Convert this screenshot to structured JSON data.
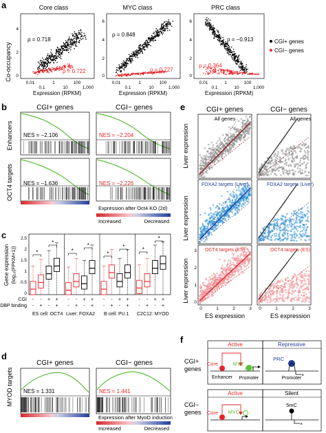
{
  "panels": {
    "a": {
      "letter": "a",
      "titles": [
        "Core class",
        "MYC class",
        "PRC class"
      ],
      "ylabel": "Co-occupancy",
      "xlabel": "Expression (RPKM)",
      "xticks": [
        "0.01",
        "1",
        "100",
        "0.01",
        "1",
        "100",
        "0.01",
        "1",
        "100"
      ],
      "xticks_lower": [
        "0.1",
        "10",
        "1,000",
        "0.1",
        "10",
        "1,000",
        "0.1",
        "10",
        "1,000"
      ],
      "yticks_core": [
        "0",
        "2",
        "4"
      ],
      "yticks_myc": [
        "0",
        "2",
        "4",
        "6"
      ],
      "yticks_prc": [
        "0",
        "2",
        "4",
        "6"
      ],
      "rho_black": [
        "ρ = 0.718",
        "ρ = 0.848",
        "ρ = −0.913"
      ],
      "rho_red": [
        "ρ = 0.722",
        "ρ = 0.727",
        "ρ = 0.364"
      ],
      "legend": [
        "CGI+ genes",
        "CGI− genes"
      ]
    },
    "b": {
      "letter": "b",
      "col_titles": [
        "CGI+ genes",
        "CGI− genes"
      ],
      "row_labels": [
        "Enhancers",
        "OCT4 targets"
      ],
      "nes": [
        "NES = −2.106",
        "NES = −2.204",
        "NES = −1.636",
        "NES = −2.226"
      ],
      "caption": "Expression after Oct4 KO (2d)",
      "increased": "Increased",
      "decreased": "Decreased"
    },
    "c": {
      "letter": "c",
      "ylabel1": "Gene expression",
      "ylabel2": "(log₁₀(FPKM+1))",
      "yticks": [
        "0",
        "0.5",
        "1",
        "1.5",
        "2",
        "2.5"
      ],
      "row_cgi": "CGI",
      "row_dbp": "DBP binding",
      "cgi_signs": [
        "-",
        "-",
        "+",
        "+",
        "-",
        "-",
        "+",
        "+",
        "-",
        "-",
        "+",
        "+",
        "-",
        "-",
        "+",
        "+"
      ],
      "dbp_signs": [
        "-",
        "+",
        "-",
        "+",
        "-",
        "+",
        "-",
        "+",
        "-",
        "+",
        "-",
        "+",
        "-",
        "+",
        "-",
        "+"
      ],
      "groups": [
        "ES cell: OCT4",
        "Liver: FOXA2",
        "B cell: PU.1",
        "C2C12: MYOD"
      ],
      "star": "*"
    },
    "d": {
      "letter": "d",
      "col_titles": [
        "CGI+ genes",
        "CGI− genes"
      ],
      "row_label": "MYOD targets",
      "nes": [
        "NES = 1.331",
        "NES = 1.441"
      ],
      "caption": "Expression after MyoD induction",
      "increased": "Increased",
      "decreased": "Decreased"
    },
    "e": {
      "letter": "e",
      "col_titles": [
        "CGI+ genes",
        "CGI− genes"
      ],
      "ylabel": "Liver expression",
      "xlabel": "ES expression",
      "inset_labels": [
        "All genes",
        "All genes",
        "FOXA2 targets (Liver)",
        "FOXA2 targets (Liver)",
        "OCT4 targets (ES)",
        "OCT4 targets (ES)"
      ],
      "yticks": [
        "0",
        "1",
        "2",
        "3"
      ],
      "xticks": [
        "0",
        "1",
        "2",
        "3"
      ]
    },
    "f": {
      "letter": "f",
      "top_label": "CGI+ genes",
      "bottom_label": "CGI− genes",
      "active": "Active",
      "repressive": "Repressive",
      "silent": "Silent",
      "core": "Core",
      "myc": "MYC",
      "prc": "PRC",
      "enhancer": "Enhancer",
      "promoter": "Promoter",
      "promoter2": "Promoter",
      "fivemc": "5mC"
    }
  },
  "colors": {
    "red": "#e8262a",
    "black": "#000000",
    "green": "#5bbf3a",
    "blue": "#1f3d9a",
    "lightblue": "#5aa7dd",
    "pink": "#f08f94",
    "gray": "#9a9a9a"
  }
}
